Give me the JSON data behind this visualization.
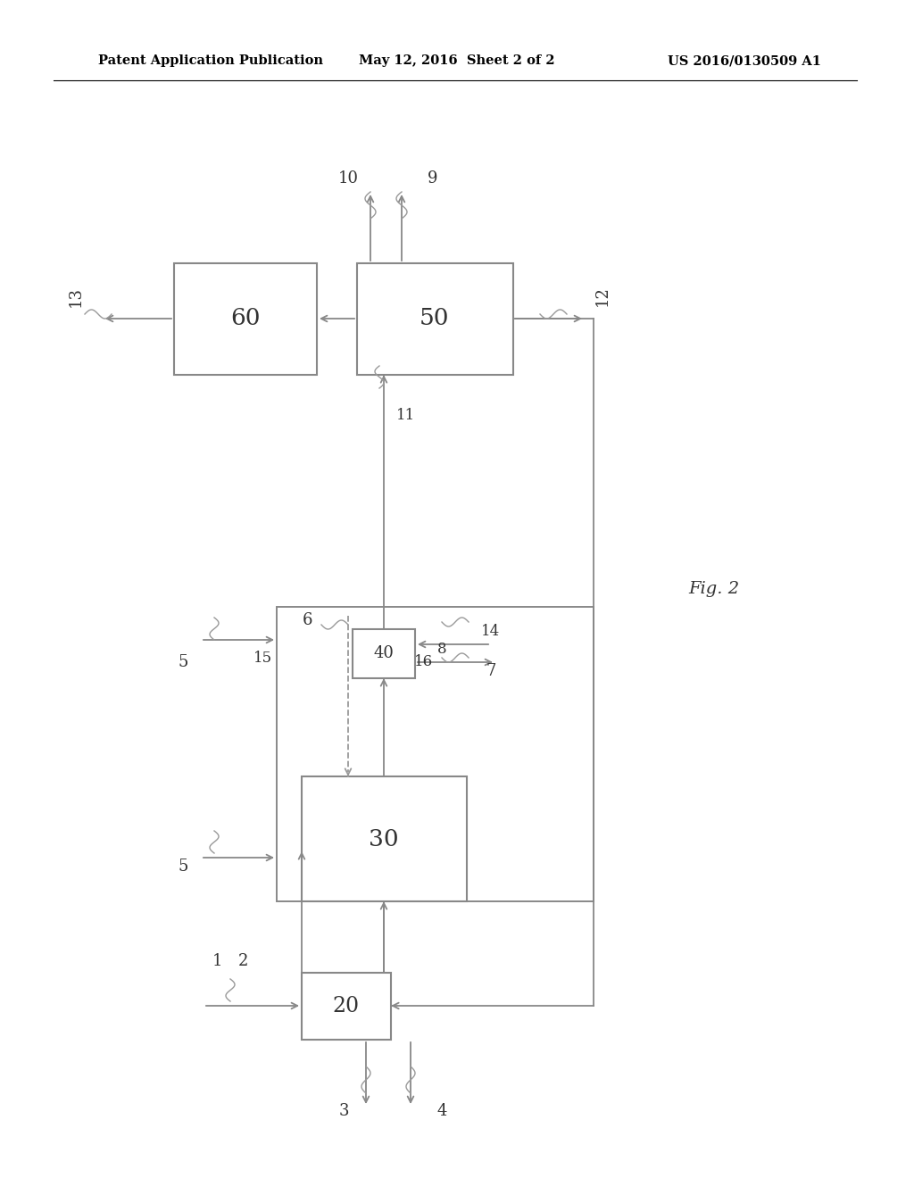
{
  "bg_color": "#ffffff",
  "header_left": "Patent Application Publication",
  "header_mid": "May 12, 2016  Sheet 2 of 2",
  "header_right": "US 2016/0130509 A1",
  "fig_label": "Fig. 2",
  "line_color": "#888888",
  "text_color": "#333333"
}
